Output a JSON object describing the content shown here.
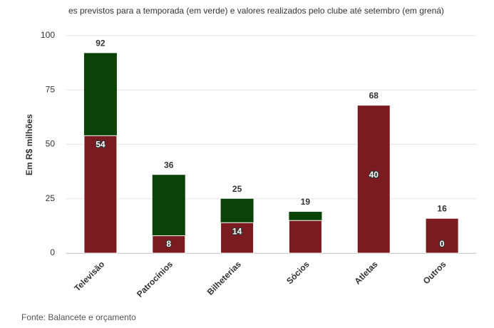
{
  "chart_data": {
    "type": "bar",
    "title": "es previstos para a temporada (em verde) e valores realizados pelo clube até setembro (em grená)",
    "y_label": "Em R$ milhões",
    "source": "Fonte: Balancete e orçamento",
    "categories": [
      "Televisão",
      "Patrocínios",
      "Bilheterias",
      "Sócios",
      "Atletas",
      "Outros"
    ],
    "series": [
      {
        "name": "previsto",
        "color": "#0b4207",
        "values": [
          92,
          36,
          25,
          19,
          40,
          0
        ]
      },
      {
        "name": "realizado",
        "color": "#7b1a1f",
        "values": [
          54,
          8,
          14,
          15,
          68,
          16
        ],
        "value_labels": [
          "54",
          "8",
          "14",
          null,
          "68",
          "16"
        ]
      }
    ],
    "ylim": [
      0,
      100
    ],
    "yticks": [
      0,
      25,
      50,
      75,
      100
    ],
    "grid": true
  }
}
